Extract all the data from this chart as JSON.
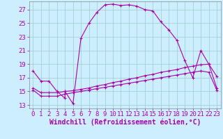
{
  "bg_color": "#cceeff",
  "line_color": "#aa00aa",
  "grid_color": "#99cccc",
  "xlabel": "Windchill (Refroidissement éolien,°C)",
  "xlim": [
    -0.5,
    23.5
  ],
  "ylim": [
    12.5,
    28.2
  ],
  "yticks": [
    13,
    15,
    17,
    19,
    21,
    23,
    25,
    27
  ],
  "xticks": [
    0,
    1,
    2,
    3,
    4,
    5,
    6,
    7,
    8,
    9,
    10,
    11,
    12,
    13,
    14,
    15,
    16,
    17,
    18,
    19,
    20,
    21,
    22,
    23
  ],
  "line1_x": [
    0,
    1,
    2,
    3,
    4,
    4,
    5,
    6,
    7,
    8,
    9,
    10,
    11,
    12,
    13,
    14,
    15,
    16,
    17,
    18,
    19,
    20,
    21,
    22,
    23
  ],
  "line1_y": [
    18.0,
    16.5,
    16.5,
    15.0,
    14.0,
    15.0,
    13.2,
    22.8,
    25.0,
    26.6,
    27.7,
    27.8,
    27.6,
    27.7,
    27.5,
    27.0,
    26.8,
    25.2,
    24.0,
    22.5,
    19.5,
    17.0,
    21.0,
    19.0,
    17.2
  ],
  "line2_x": [
    0,
    1,
    2,
    3,
    4,
    5,
    6,
    7,
    8,
    9,
    10,
    11,
    12,
    13,
    14,
    15,
    16,
    17,
    18,
    19,
    20,
    21,
    22,
    23
  ],
  "line2_y": [
    15.5,
    14.8,
    14.8,
    14.8,
    15.0,
    15.1,
    15.3,
    15.5,
    15.8,
    16.0,
    16.3,
    16.5,
    16.8,
    17.0,
    17.3,
    17.5,
    17.8,
    18.0,
    18.2,
    18.5,
    18.7,
    18.9,
    19.0,
    15.5
  ],
  "line3_x": [
    0,
    1,
    2,
    3,
    4,
    5,
    6,
    7,
    8,
    9,
    10,
    11,
    12,
    13,
    14,
    15,
    16,
    17,
    18,
    19,
    20,
    21,
    22,
    23
  ],
  "line3_y": [
    15.2,
    14.3,
    14.3,
    14.3,
    14.6,
    14.8,
    15.0,
    15.2,
    15.4,
    15.6,
    15.8,
    16.0,
    16.2,
    16.4,
    16.6,
    16.8,
    17.0,
    17.2,
    17.4,
    17.6,
    17.8,
    18.0,
    17.8,
    15.2
  ],
  "tick_fontsize": 6.5,
  "xlabel_fontsize": 7.0
}
